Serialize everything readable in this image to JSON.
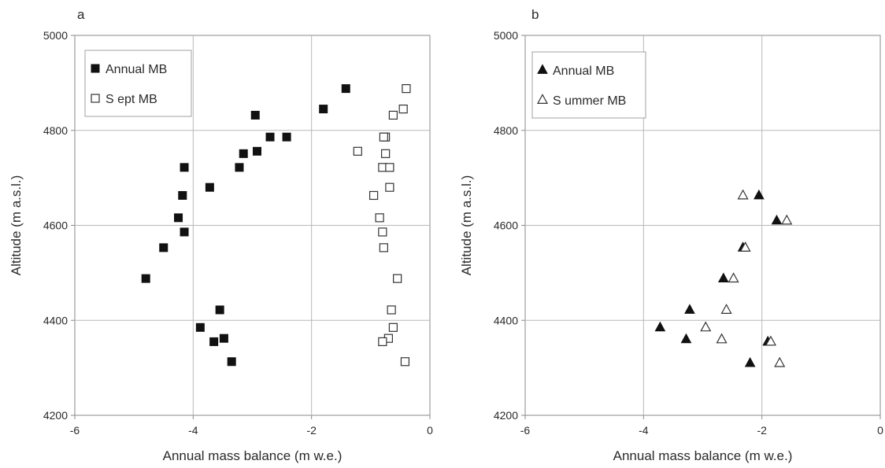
{
  "chart_data": [
    {
      "panel": "a",
      "type": "scatter",
      "xlabel": "Annual mass balance (m w.e.)",
      "ylabel": "Altitude (m a.s.l.)",
      "xlim": [
        -6,
        0
      ],
      "ylim": [
        4200,
        5000
      ],
      "xticks": [
        -6,
        -4,
        -2,
        0
      ],
      "yticks": [
        4200,
        4400,
        4600,
        4800,
        5000
      ],
      "grid": true,
      "legend_position": "top-left",
      "series": [
        {
          "name": "Annual MB",
          "marker": "square-filled",
          "color": "#111111",
          "points": [
            [
              -1.42,
              4888
            ],
            [
              -1.8,
              4845
            ],
            [
              -2.95,
              4832
            ],
            [
              -2.42,
              4786
            ],
            [
              -2.7,
              4786
            ],
            [
              -2.92,
              4756
            ],
            [
              -3.15,
              4751
            ],
            [
              -4.15,
              4722
            ],
            [
              -3.22,
              4722
            ],
            [
              -3.72,
              4680
            ],
            [
              -4.18,
              4663
            ],
            [
              -4.25,
              4616
            ],
            [
              -4.15,
              4586
            ],
            [
              -4.5,
              4553
            ],
            [
              -4.8,
              4488
            ],
            [
              -3.55,
              4422
            ],
            [
              -3.88,
              4385
            ],
            [
              -3.48,
              4362
            ],
            [
              -3.65,
              4355
            ],
            [
              -3.35,
              4313
            ]
          ]
        },
        {
          "name": "S ept MB",
          "marker": "square-open",
          "color": "#111111",
          "points": [
            [
              -0.4,
              4888
            ],
            [
              -0.45,
              4845
            ],
            [
              -0.62,
              4832
            ],
            [
              -1.22,
              4756
            ],
            [
              -0.75,
              4786
            ],
            [
              -0.78,
              4786
            ],
            [
              -0.75,
              4751
            ],
            [
              -0.8,
              4722
            ],
            [
              -0.68,
              4722
            ],
            [
              -0.68,
              4680
            ],
            [
              -0.95,
              4663
            ],
            [
              -0.85,
              4616
            ],
            [
              -0.8,
              4586
            ],
            [
              -0.78,
              4553
            ],
            [
              -0.55,
              4488
            ],
            [
              -0.65,
              4422
            ],
            [
              -0.62,
              4385
            ],
            [
              -0.7,
              4362
            ],
            [
              -0.8,
              4355
            ],
            [
              -0.42,
              4313
            ]
          ]
        }
      ]
    },
    {
      "panel": "b",
      "type": "scatter",
      "xlabel": "Annual mass balance (m w.e.)",
      "ylabel": "Altitude (m a.s.l.)",
      "xlim": [
        -6,
        0
      ],
      "ylim": [
        4200,
        5000
      ],
      "xticks": [
        -6,
        -4,
        -2,
        0
      ],
      "yticks": [
        4200,
        4400,
        4600,
        4800,
        5000
      ],
      "grid": true,
      "legend_position": "top-left",
      "series": [
        {
          "name": "Annual MB",
          "marker": "triangle-filled",
          "color": "#111111",
          "points": [
            [
              -2.05,
              4663
            ],
            [
              -1.75,
              4610
            ],
            [
              -2.32,
              4553
            ],
            [
              -2.65,
              4488
            ],
            [
              -3.22,
              4422
            ],
            [
              -3.72,
              4385
            ],
            [
              -3.28,
              4360
            ],
            [
              -1.9,
              4355
            ],
            [
              -2.2,
              4310
            ]
          ]
        },
        {
          "name": "S ummer MB",
          "marker": "triangle-open",
          "color": "#111111",
          "points": [
            [
              -2.32,
              4663
            ],
            [
              -1.58,
              4610
            ],
            [
              -2.28,
              4553
            ],
            [
              -2.48,
              4488
            ],
            [
              -2.6,
              4422
            ],
            [
              -2.95,
              4385
            ],
            [
              -2.68,
              4360
            ],
            [
              -1.85,
              4355
            ],
            [
              -1.7,
              4310
            ]
          ]
        }
      ]
    }
  ]
}
